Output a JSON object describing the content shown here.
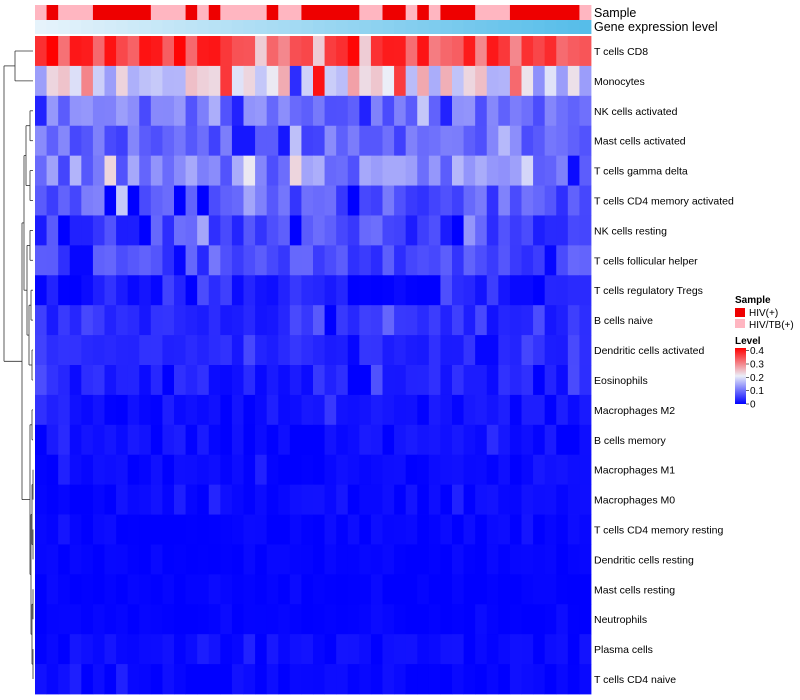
{
  "chart_data": {
    "type": "heatmap",
    "title": "",
    "n_samples": 48,
    "annotation_tracks": [
      {
        "label": "Sample"
      },
      {
        "label": "Gene expression level"
      }
    ],
    "sample_groups": [
      "HIV/TB(+)",
      "HIV(+)",
      "HIV/TB(+)",
      "HIV/TB(+)",
      "HIV/TB(+)",
      "HIV(+)",
      "HIV(+)",
      "HIV(+)",
      "HIV(+)",
      "HIV(+)",
      "HIV/TB(+)",
      "HIV/TB(+)",
      "HIV/TB(+)",
      "HIV(+)",
      "HIV/TB(+)",
      "HIV(+)",
      "HIV/TB(+)",
      "HIV/TB(+)",
      "HIV/TB(+)",
      "HIV/TB(+)",
      "HIV(+)",
      "HIV/TB(+)",
      "HIV/TB(+)",
      "HIV(+)",
      "HIV(+)",
      "HIV(+)",
      "HIV(+)",
      "HIV(+)",
      "HIV/TB(+)",
      "HIV/TB(+)",
      "HIV(+)",
      "HIV(+)",
      "HIV/TB(+)",
      "HIV(+)",
      "HIV/TB(+)",
      "HIV(+)",
      "HIV(+)",
      "HIV(+)",
      "HIV/TB(+)",
      "HIV/TB(+)",
      "HIV/TB(+)",
      "HIV(+)",
      "HIV(+)",
      "HIV(+)",
      "HIV(+)",
      "HIV(+)",
      "HIV(+)",
      "HIV/TB(+)"
    ],
    "rows": [
      {
        "label": "T cells CD8",
        "base": 0.36,
        "spread": 0.06
      },
      {
        "label": "Monocytes",
        "base": 0.2,
        "spread": 0.08
      },
      {
        "label": "NK cells activated",
        "base": 0.1,
        "spread": 0.035
      },
      {
        "label": "Mast cells activated",
        "base": 0.09,
        "spread": 0.035
      },
      {
        "label": "T cells gamma delta",
        "base": 0.11,
        "spread": 0.05
      },
      {
        "label": "T cells CD4 memory activated",
        "base": 0.08,
        "spread": 0.04
      },
      {
        "label": "NK cells resting",
        "base": 0.06,
        "spread": 0.04
      },
      {
        "label": "T cells follicular helper",
        "base": 0.065,
        "spread": 0.03
      },
      {
        "label": "T cells regulatory  Tregs",
        "base": 0.02,
        "spread": 0.02
      },
      {
        "label": "B cells naive",
        "base": 0.04,
        "spread": 0.025
      },
      {
        "label": "Dendritic cells activated",
        "base": 0.035,
        "spread": 0.015
      },
      {
        "label": "Eosinophils",
        "base": 0.025,
        "spread": 0.02
      },
      {
        "label": "Macrophages M2",
        "base": 0.015,
        "spread": 0.015
      },
      {
        "label": "B cells memory",
        "base": 0.012,
        "spread": 0.015
      },
      {
        "label": "Macrophages M1",
        "base": 0.008,
        "spread": 0.01
      },
      {
        "label": "Macrophages M0",
        "base": 0.008,
        "spread": 0.01
      },
      {
        "label": "T cells CD4 memory resting",
        "base": 0.004,
        "spread": 0.008
      },
      {
        "label": "Dendritic cells resting",
        "base": 0.003,
        "spread": 0.006
      },
      {
        "label": "Mast cells resting",
        "base": 0.002,
        "spread": 0.004
      },
      {
        "label": "Neutrophils",
        "base": 0.002,
        "spread": 0.004
      },
      {
        "label": "Plasma cells",
        "base": 0.01,
        "spread": 0.012
      },
      {
        "label": "T cells CD4 naive",
        "base": 0.006,
        "spread": 0.01
      }
    ],
    "legend": [
      {
        "title": "Sample",
        "entries": [
          {
            "label": "HIV(+)",
            "color": "#ee0000"
          },
          {
            "label": "HIV/TB(+)",
            "color": "#ffb6c1"
          }
        ]
      },
      {
        "title": "Level",
        "ticks": [
          "0.4",
          "0.3",
          "0.2",
          "0.1",
          "0"
        ],
        "tick_values": [
          0.4,
          0.3,
          0.2,
          0.1,
          0
        ],
        "range": [
          0,
          0.42
        ],
        "colors": {
          "low": "#0000ff",
          "mid": "#ebeef8",
          "high": "#ff0000"
        }
      }
    ],
    "track_colors": {
      "expr_low": "#e6f3fb",
      "expr_high": "#56bde9"
    }
  }
}
